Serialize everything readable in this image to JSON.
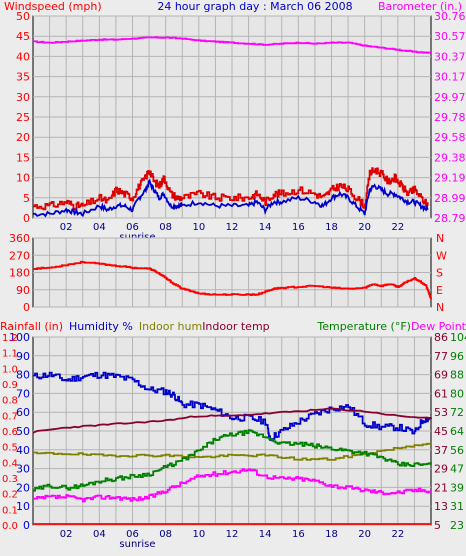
{
  "title": "24 hour graph day : March 06 2008",
  "colors": {
    "windspeed": "#ff0000",
    "gust": "#dd0000",
    "average": "#0000cc",
    "barometer": "#ff00ff",
    "direction": "#ff0000",
    "rainfall": "#ff0000",
    "humidity": "#0000cc",
    "indoor_hum": "#808000",
    "indoor_temp": "#880033",
    "temperature": "#008000",
    "dew_point": "#ff00ff",
    "plot_bg": "#e6e6e6",
    "grid": "#b4b4b4"
  },
  "hour_ticks": [
    "02",
    "04",
    "06",
    "08",
    "10",
    "12",
    "14",
    "16",
    "18",
    "20",
    "22"
  ],
  "sunrise_label": "sunrise",
  "chart_data": [
    {
      "type": "line",
      "name": "wind_barometer",
      "left_axis_label": "Windspeed (mph)",
      "right_axis_label": "Barometer (in.)",
      "left_ticks": [
        "0",
        "5",
        "10",
        "15",
        "20",
        "25",
        "30",
        "35",
        "40",
        "45",
        "50"
      ],
      "right_ticks": [
        "28.79",
        "28.99",
        "29.19",
        "29.38",
        "29.58",
        "29.78",
        "29.97",
        "30.17",
        "30.37",
        "30.57",
        "30.76"
      ],
      "ylim_left": [
        0,
        50
      ],
      "ylim_right": [
        28.79,
        30.76
      ],
      "x_range_hours": [
        0,
        24
      ],
      "series": [
        {
          "key": "gust",
          "axis": "left",
          "x": [
            0,
            1,
            2,
            2.5,
            3,
            4,
            4.5,
            5,
            5.5,
            6,
            6.4,
            6.8,
            7,
            7.3,
            7.6,
            7.9,
            8.3,
            8.7,
            9,
            10,
            11,
            12,
            13,
            13.5,
            14,
            14.5,
            15,
            16,
            17,
            17.5,
            18,
            18.5,
            19,
            19.5,
            20,
            20.3,
            20.6,
            21,
            21.4,
            21.8,
            22.2,
            22.6,
            23,
            23.4,
            23.8
          ],
          "values": [
            3,
            3,
            4,
            3,
            3,
            5,
            4,
            7,
            6,
            5,
            8,
            10,
            12,
            9,
            8,
            10,
            6,
            5,
            5,
            6,
            5,
            5,
            5,
            6,
            4,
            6,
            6,
            7,
            6,
            5,
            7,
            8,
            7,
            5,
            3,
            11,
            12,
            11,
            9,
            10,
            8,
            6,
            7,
            5,
            3
          ]
        },
        {
          "key": "average",
          "axis": "left",
          "x": [
            0,
            1,
            2,
            2.5,
            3,
            4,
            4.5,
            5,
            5.5,
            6,
            6.4,
            6.8,
            7,
            7.3,
            7.6,
            7.9,
            8.3,
            8.7,
            9,
            10,
            11,
            12,
            13,
            13.5,
            14,
            14.5,
            15,
            16,
            17,
            17.5,
            18,
            18.5,
            19,
            19.5,
            20,
            20.3,
            20.6,
            21,
            21.4,
            21.8,
            22.2,
            22.6,
            23,
            23.4,
            23.8
          ],
          "values": [
            1,
            1,
            2,
            1.5,
            1,
            3,
            2,
            3,
            3,
            2,
            5,
            7,
            9,
            7,
            5,
            6,
            3,
            3,
            3,
            4,
            3,
            3,
            3,
            4,
            2,
            4,
            4,
            5,
            4,
            3,
            5,
            6,
            5,
            3,
            1,
            7,
            8,
            7,
            6,
            6,
            5,
            4,
            4,
            3,
            2
          ]
        },
        {
          "key": "barometer",
          "axis": "right",
          "x": [
            0,
            1,
            2,
            3,
            4,
            5,
            6,
            7,
            8,
            9,
            10,
            11,
            12,
            13,
            14,
            15,
            16,
            17,
            18,
            19,
            20,
            21,
            22,
            23,
            24
          ],
          "values": [
            30.51,
            30.5,
            30.51,
            30.52,
            30.53,
            30.53,
            30.54,
            30.55,
            30.55,
            30.54,
            30.52,
            30.51,
            30.5,
            30.49,
            30.48,
            30.49,
            30.5,
            30.49,
            30.5,
            30.5,
            30.47,
            30.45,
            30.43,
            30.41,
            30.4
          ]
        }
      ]
    },
    {
      "type": "line",
      "name": "wind_direction",
      "left_ticks": [
        "0",
        "90",
        "180",
        "270",
        "360"
      ],
      "right_ticks": [
        "N",
        "E",
        "S",
        "W",
        "N"
      ],
      "ylim": [
        0,
        360
      ],
      "series": [
        {
          "key": "direction",
          "x": [
            0,
            1,
            2,
            3,
            4,
            5,
            6,
            7,
            7.5,
            8,
            8.5,
            9,
            9.5,
            10,
            11,
            12,
            13,
            13.5,
            14,
            14.5,
            15,
            16,
            17,
            18,
            19,
            20,
            20.5,
            21,
            21.5,
            22,
            22.5,
            23,
            23.4,
            23.7,
            24
          ],
          "values": [
            200,
            205,
            220,
            235,
            225,
            215,
            205,
            200,
            180,
            150,
            120,
            95,
            85,
            70,
            65,
            65,
            65,
            65,
            80,
            95,
            100,
            105,
            110,
            100,
            95,
            100,
            120,
            110,
            120,
            105,
            130,
            150,
            130,
            110,
            40
          ]
        }
      ]
    },
    {
      "type": "line",
      "name": "humidity_temperature",
      "left_axis_label_rain": "Rainfall (in)",
      "left_axis_label_hum": "Humidity %",
      "left_axis_label_inhum": "Indoor hum",
      "left_axis_label_intemp": "Indoor temp",
      "right_axis_label_temp": "Temperature (°F)",
      "right_axis_label_dew": "Dew Point",
      "rain_ticks": [
        "0.0",
        "0.1",
        "0.2",
        "0.3",
        "0.4",
        "0.5",
        "0.6",
        "0.7",
        "0.8",
        "0.9",
        "1.0",
        "1.1",
        "1.2"
      ],
      "hum_ticks": [
        "0",
        "10",
        "20",
        "30",
        "40",
        "50",
        "60",
        "70",
        "80",
        "90",
        "100"
      ],
      "intemp_ticks": [
        "5",
        "13",
        "21",
        "29",
        "37",
        "45",
        "53",
        "61",
        "69",
        "77",
        "86"
      ],
      "temp_ticks": [
        "23",
        "31",
        "39",
        "47",
        "56",
        "64",
        "72",
        "80",
        "88",
        "96",
        "104"
      ],
      "ylim_humidity": [
        0,
        100
      ],
      "ylim_temperature": [
        23,
        104
      ],
      "series": [
        {
          "key": "rainfall",
          "axis": "rain",
          "x": [
            0,
            24
          ],
          "values": [
            0,
            0
          ]
        },
        {
          "key": "humidity",
          "axis": "humidity",
          "x": [
            0,
            1,
            2,
            3,
            4,
            5,
            6,
            7,
            8,
            8.5,
            9,
            10,
            11,
            12,
            13,
            14,
            14.3,
            15,
            16,
            17,
            18,
            19,
            20,
            21,
            22,
            23,
            23.5,
            24
          ],
          "values": [
            79,
            80,
            77,
            79,
            80,
            79,
            77,
            72,
            71,
            69,
            64,
            64,
            61,
            57,
            57,
            55,
            46,
            50,
            55,
            59,
            62,
            63,
            54,
            52,
            52,
            49,
            56,
            57
          ]
        },
        {
          "key": "indoor_hum",
          "axis": "humidity",
          "x": [
            0,
            2,
            4,
            6,
            8,
            10,
            12,
            14,
            16,
            18,
            20,
            22,
            24
          ],
          "values": [
            38,
            38,
            37,
            37,
            37,
            36,
            37,
            37,
            35,
            35,
            38,
            41,
            44
          ]
        },
        {
          "key": "indoor_temp",
          "axis": "temperature",
          "x": [
            0,
            2,
            4,
            6,
            8,
            10,
            12,
            14,
            16,
            18,
            20,
            22,
            24
          ],
          "values": [
            63,
            65,
            66,
            67,
            68,
            70,
            70,
            71,
            72,
            73,
            72,
            70,
            69
          ]
        },
        {
          "key": "temperature",
          "axis": "temperature",
          "x": [
            0,
            1,
            2,
            3,
            4,
            5,
            6,
            7,
            8,
            9,
            10,
            11,
            12,
            13,
            14,
            15,
            16,
            17,
            18,
            19,
            20,
            21,
            22,
            23,
            24
          ],
          "values": [
            38,
            40,
            39,
            40,
            42,
            43,
            44,
            45,
            48,
            51,
            55,
            60,
            62,
            63,
            61,
            58,
            58,
            57,
            56,
            55,
            54,
            52,
            49,
            49,
            49
          ]
        },
        {
          "key": "dew_point",
          "axis": "temperature",
          "x": [
            0,
            1,
            2,
            3,
            4,
            5,
            6,
            7,
            8,
            9,
            10,
            11,
            12,
            13,
            14,
            15,
            16,
            17,
            18,
            19,
            20,
            21,
            22,
            23,
            24
          ],
          "values": [
            34,
            35,
            35,
            34,
            35,
            35,
            34,
            35,
            38,
            41,
            44,
            45,
            46,
            47,
            44,
            43,
            43,
            42,
            40,
            39,
            38,
            37,
            37,
            38,
            38
          ]
        }
      ]
    }
  ]
}
